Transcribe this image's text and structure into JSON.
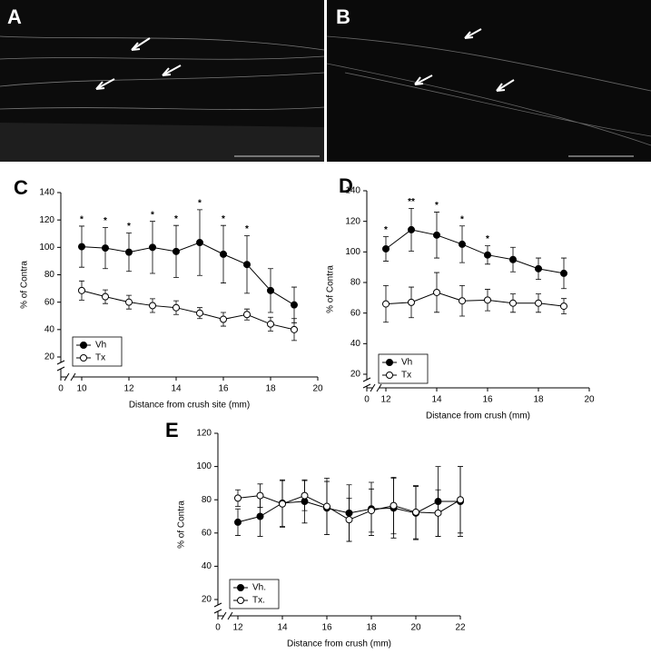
{
  "micrographs": [
    "A",
    "B"
  ],
  "chart_data": [
    {
      "type": "line",
      "label": "C",
      "ylabel": "% of Contra",
      "xlabel": "Distance from crush site (mm)",
      "xlim": [
        0,
        20
      ],
      "x_break": [
        0,
        10
      ],
      "xticks": [
        0,
        10,
        12,
        14,
        16,
        18,
        20
      ],
      "ylim": [
        20,
        140
      ],
      "yticks": [
        20,
        40,
        60,
        80,
        100,
        120,
        140
      ],
      "legend": "lower left",
      "x": [
        10,
        11,
        12,
        13,
        14,
        15,
        16,
        17,
        18,
        19
      ],
      "series": [
        {
          "name": "Vh",
          "color": "#000000",
          "marker_fill": "#000000",
          "values": [
            100.5,
            99.5,
            96.5,
            100,
            97,
            103.5,
            95,
            87.5,
            68.5,
            58
          ],
          "errors": [
            15,
            15,
            14,
            19,
            19,
            24,
            21,
            21,
            16,
            13
          ]
        },
        {
          "name": "Tx",
          "color": "#000000",
          "marker_fill": "#ffffff",
          "values": [
            68.5,
            64,
            60,
            57.5,
            56,
            52,
            47.5,
            51,
            44,
            40
          ],
          "errors": [
            7,
            5,
            5,
            5,
            5,
            4,
            5,
            4,
            5,
            8
          ]
        }
      ],
      "annotations": [
        {
          "x": 10,
          "text": "*"
        },
        {
          "x": 11,
          "text": "*"
        },
        {
          "x": 12,
          "text": "*"
        },
        {
          "x": 13,
          "text": "*"
        },
        {
          "x": 14,
          "text": "*"
        },
        {
          "x": 15,
          "text": "*"
        },
        {
          "x": 16,
          "text": "*"
        },
        {
          "x": 17,
          "text": "*"
        }
      ]
    },
    {
      "type": "line",
      "label": "D",
      "ylabel": "% of Contra",
      "xlabel": "Distance from crush (mm)",
      "xlim": [
        0,
        20
      ],
      "x_break": [
        0,
        12
      ],
      "xticks": [
        0,
        12,
        14,
        16,
        18,
        20
      ],
      "ylim": [
        20,
        140
      ],
      "yticks": [
        20,
        40,
        60,
        80,
        100,
        120,
        140
      ],
      "legend": "lower left",
      "x": [
        12,
        13,
        14,
        15,
        16,
        17,
        18,
        19
      ],
      "series": [
        {
          "name": "Vh",
          "color": "#000000",
          "marker_fill": "#000000",
          "values": [
            102,
            114.5,
            111,
            105,
            98,
            95,
            89,
            86
          ],
          "errors": [
            8,
            14,
            15,
            12,
            6,
            8,
            7,
            10
          ]
        },
        {
          "name": "Tx",
          "color": "#000000",
          "marker_fill": "#ffffff",
          "values": [
            66,
            67,
            73.5,
            68,
            68.5,
            66.5,
            66.5,
            64.5
          ],
          "errors": [
            12,
            10,
            13,
            10,
            7,
            6,
            6,
            5
          ]
        }
      ],
      "annotations": [
        {
          "x": 12,
          "text": "*"
        },
        {
          "x": 13,
          "text": "**"
        },
        {
          "x": 14,
          "text": "*"
        },
        {
          "x": 15,
          "text": "*"
        },
        {
          "x": 16,
          "text": "*"
        }
      ]
    },
    {
      "type": "line",
      "label": "E",
      "ylabel": "% of Contra",
      "xlabel": "Distance from crush (mm)",
      "xlim": [
        0,
        22
      ],
      "x_break": [
        0,
        12
      ],
      "xticks": [
        0,
        12,
        14,
        16,
        18,
        20,
        22
      ],
      "ylim": [
        20,
        120
      ],
      "yticks": [
        20,
        40,
        60,
        80,
        100,
        120
      ],
      "legend": "lower left",
      "x": [
        12,
        13,
        14,
        15,
        16,
        17,
        18,
        19,
        20,
        21,
        22
      ],
      "series": [
        {
          "name": "Vh.",
          "color": "#000000",
          "marker_fill": "#000000",
          "values": [
            66.5,
            70,
            78,
            79,
            75,
            72,
            74.5,
            75,
            72,
            79,
            79
          ],
          "errors": [
            8,
            12,
            14,
            13,
            16,
            17,
            16,
            18,
            16,
            21,
            21
          ]
        },
        {
          "name": "Tx.",
          "color": "#000000",
          "marker_fill": "#ffffff",
          "values": [
            81,
            82.5,
            77.5,
            82.5,
            76,
            68,
            73.5,
            76.5,
            72.5,
            72,
            80
          ],
          "errors": [
            5,
            7,
            14,
            9,
            17,
            13,
            13,
            17,
            16,
            14,
            20
          ]
        }
      ],
      "annotations": []
    }
  ]
}
